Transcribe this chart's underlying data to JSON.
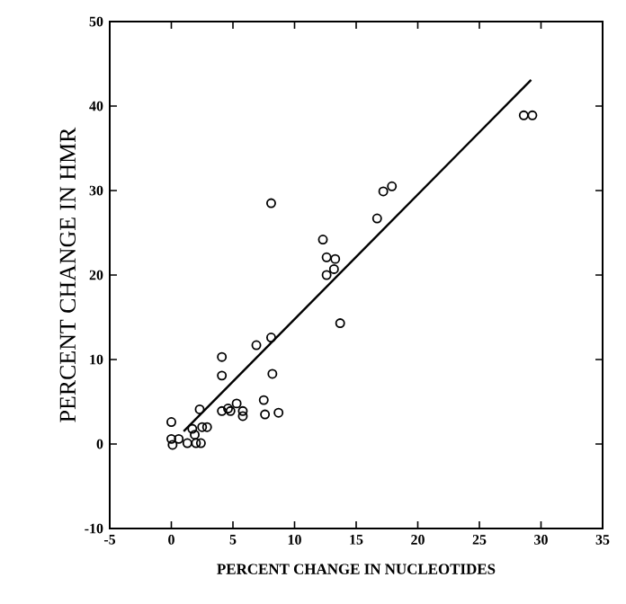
{
  "chart_data": {
    "type": "scatter",
    "xlabel": "PERCENT CHANGE IN NUCLEOTIDES",
    "ylabel": "PERCENT CHANGE IN HMR",
    "xlim": [
      -5,
      35
    ],
    "ylim": [
      -10,
      50
    ],
    "xticks": [
      -5,
      0,
      5,
      10,
      15,
      20,
      25,
      30,
      35
    ],
    "yticks": [
      -10,
      0,
      10,
      20,
      30,
      40,
      50
    ],
    "marker": "circle",
    "series": [
      {
        "color": "#000000",
        "x": [
          0,
          0,
          0.1,
          0.6,
          1.3,
          1.7,
          1.9,
          2.0,
          2.4,
          2.3,
          2.5,
          2.9,
          4.1,
          4.1,
          4.1,
          4.6,
          4.8,
          5.3,
          5.8,
          5.8,
          6.9,
          7.5,
          7.6,
          8.1,
          8.2,
          8.1,
          8.7,
          12.3,
          12.6,
          12.6,
          13.3,
          13.2,
          13.7,
          16.7,
          17.2,
          17.9,
          28.6,
          29.3
        ],
        "values": [
          2.6,
          0.6,
          -0.1,
          0.6,
          0.1,
          1.8,
          1.1,
          0.1,
          0.1,
          4.1,
          2.0,
          2.0,
          8.1,
          10.3,
          3.9,
          4.2,
          3.9,
          4.8,
          3.9,
          3.3,
          11.7,
          5.2,
          3.5,
          12.6,
          8.3,
          28.5,
          3.7,
          24.2,
          22.1,
          20.0,
          21.9,
          20.7,
          14.3,
          26.7,
          29.9,
          30.5,
          38.9,
          38.9
        ]
      },
      {
        "type": "line",
        "color": "#000000",
        "x": [
          1.0,
          29.2
        ],
        "values": [
          1.5,
          43.1
        ],
        "marker": "none",
        "line_style": "solid"
      }
    ]
  }
}
